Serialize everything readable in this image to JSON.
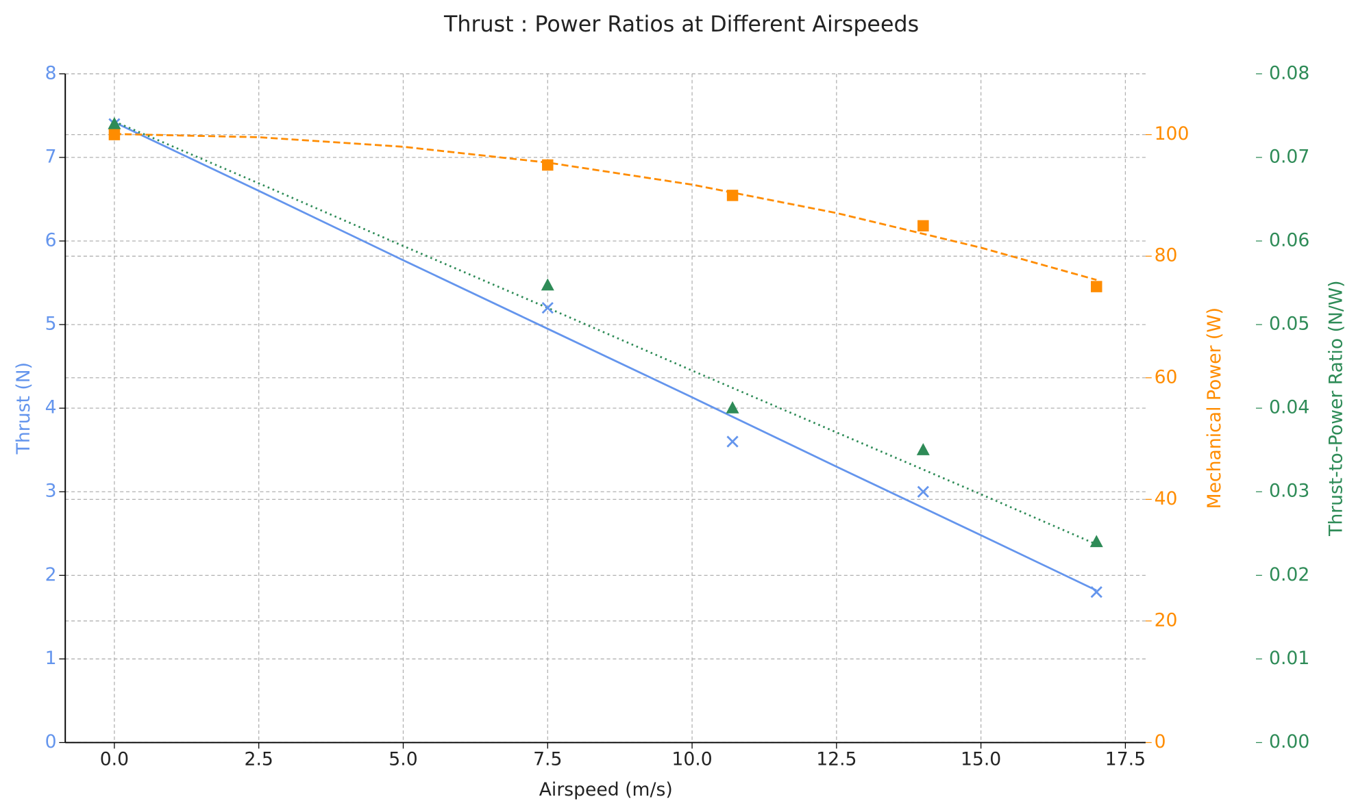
{
  "chart_data": {
    "type": "scatter",
    "title": "Thrust : Power Ratios at Different Airspeeds",
    "xlabel": "Airspeed (m/s)",
    "ylabel": "Thrust (N)",
    "y2label": "Mechanical Power (W)",
    "y3label": "Thrust-to-Power Ratio (N/W)",
    "xlim": [
      -0.85,
      17.85
    ],
    "xticks": [
      {
        "value": 0,
        "label": "0.0"
      },
      2.5,
      {
        "value": 5,
        "label": "5.0"
      },
      7.5,
      {
        "value": 10,
        "label": "10.0"
      },
      12.5,
      {
        "value": 15,
        "label": "15.0"
      },
      17.5
    ],
    "ylim": [
      0,
      8
    ],
    "yticks": [
      0,
      1,
      2,
      3,
      4,
      5,
      6,
      7,
      8
    ],
    "ycolor": "#6495ED",
    "y2lim": [
      0,
      110
    ],
    "y2ticks": [
      0,
      20,
      40,
      60,
      80,
      100
    ],
    "y2color": "#FF8C00",
    "y3lim": [
      0,
      0.08
    ],
    "y3ticks": [
      {
        "value": 0,
        "label": "0.00"
      },
      0.01,
      0.02,
      0.03,
      0.04,
      0.05,
      0.06,
      0.07,
      0.08
    ],
    "y3color": "#2E8B57",
    "grid": true,
    "series": [
      {
        "style": "marker",
        "marker": "x",
        "color": "#6495ED",
        "axis": "y",
        "x": [
          0,
          7.5,
          10.7,
          14,
          17
        ],
        "values": [
          7.4,
          5.2,
          3.6,
          3.0,
          1.8
        ]
      },
      {
        "style": "marker",
        "marker": "square",
        "color": "#FF8C00",
        "axis": "y2",
        "x": [
          0,
          7.5,
          10.7,
          14,
          17
        ],
        "values": [
          100,
          95,
          90,
          85,
          75
        ]
      },
      {
        "style": "marker",
        "marker": "triangle",
        "color": "#2E8B57",
        "axis": "y3",
        "x": [
          0,
          7.5,
          10.7,
          14,
          17
        ],
        "values": [
          0.074,
          0.0547,
          0.04,
          0.035,
          0.024
        ]
      },
      {
        "style": "line",
        "dash": "solid",
        "color": "#6495ED",
        "axis": "y",
        "x": [
          0,
          2.5,
          5,
          7.5,
          10,
          12.5,
          15,
          17
        ],
        "values": [
          7.42,
          6.6,
          5.77,
          4.95,
          4.13,
          3.3,
          2.48,
          1.82
        ]
      },
      {
        "style": "line",
        "dash": "dashed",
        "color": "#FF8C00",
        "axis": "y2",
        "x": [
          0,
          2.5,
          5,
          7.5,
          10,
          12.5,
          15,
          17
        ],
        "values": [
          100.1,
          99.57,
          98.0,
          95.4,
          91.77,
          87.1,
          81.4,
          76.1
        ]
      },
      {
        "style": "line",
        "dash": "dotted",
        "color": "#2E8B57",
        "axis": "y3",
        "x": [
          0,
          2.5,
          5,
          7.5,
          10,
          12.5,
          15,
          17
        ],
        "values": [
          0.0743,
          0.0669,
          0.0594,
          0.052,
          0.0445,
          0.0371,
          0.0297,
          0.0237
        ]
      }
    ]
  }
}
